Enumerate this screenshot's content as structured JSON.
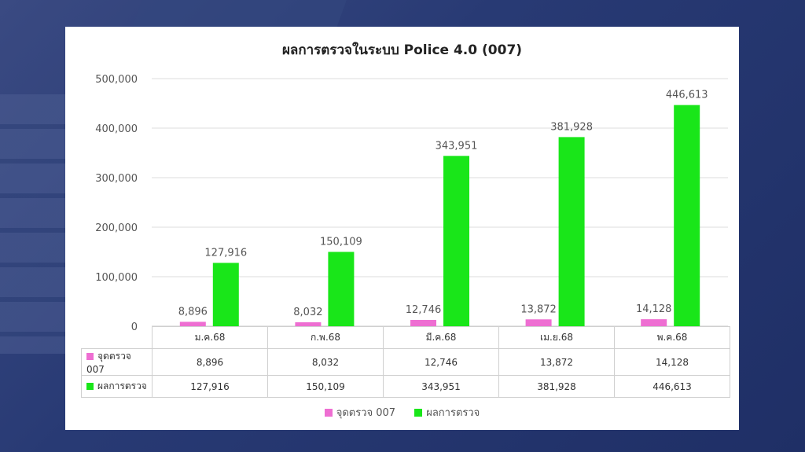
{
  "colors": {
    "series1": "#ee6ed2",
    "series2": "#19e619"
  },
  "chart_data": {
    "type": "bar",
    "title": "ผลการตรวจในระบบ Police 4.0 (007)",
    "categories": [
      "ม.ค.68",
      "ก.พ.68",
      "มี.ค.68",
      "เม.ย.68",
      "พ.ค.68"
    ],
    "series": [
      {
        "name": "จุดตรวจ 007",
        "values": [
          8896,
          8032,
          12746,
          13872,
          14128
        ],
        "labels": [
          "8,896",
          "8,032",
          "12,746",
          "13,872",
          "14,128"
        ]
      },
      {
        "name": "ผลการตรวจ",
        "values": [
          127916,
          150109,
          343951,
          381928,
          446613
        ],
        "labels": [
          "127,916",
          "150,109",
          "343,951",
          "381,928",
          "446,613"
        ]
      }
    ],
    "ylim": [
      0,
      500000
    ],
    "yticks": [
      0,
      100000,
      200000,
      300000,
      400000,
      500000
    ],
    "ytick_labels": [
      "0",
      "100,000",
      "200,000",
      "300,000",
      "400,000",
      "500,000"
    ],
    "grid": true,
    "legend": "bottom",
    "data_table": true
  }
}
